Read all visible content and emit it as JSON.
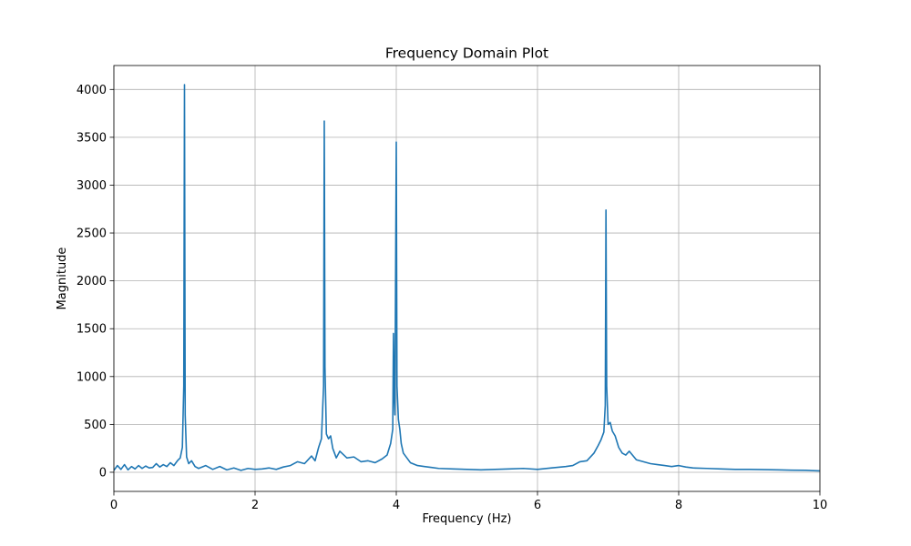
{
  "chart_data": {
    "type": "line",
    "title": "Frequency Domain Plot",
    "xlabel": "Frequency (Hz)",
    "ylabel": "Magnitude",
    "xlim": [
      0,
      10
    ],
    "ylim": [
      -200,
      4250
    ],
    "xticks": [
      0,
      2,
      4,
      6,
      8,
      10
    ],
    "yticks": [
      0,
      500,
      1000,
      1500,
      2000,
      2500,
      3000,
      3500,
      4000
    ],
    "xtick_labels": [
      "0",
      "2",
      "4",
      "6",
      "8",
      "10"
    ],
    "ytick_labels": [
      "0",
      "500",
      "1000",
      "1500",
      "2000",
      "2500",
      "3000",
      "3500",
      "4000"
    ],
    "grid": true,
    "series": [
      {
        "color": "#1f77b4",
        "peaks": [
          {
            "x": 1.0,
            "y": 4050
          },
          {
            "x": 2.98,
            "y": 3670
          },
          {
            "x": 4.0,
            "y": 3450
          },
          {
            "x": 3.96,
            "y": 1450
          },
          {
            "x": 6.97,
            "y": 2740
          }
        ],
        "x": [
          0,
          0.05,
          0.1,
          0.15,
          0.2,
          0.25,
          0.3,
          0.35,
          0.4,
          0.45,
          0.5,
          0.55,
          0.6,
          0.65,
          0.7,
          0.75,
          0.8,
          0.85,
          0.9,
          0.94,
          0.97,
          0.99,
          1.0,
          1.01,
          1.03,
          1.06,
          1.1,
          1.15,
          1.2,
          1.3,
          1.4,
          1.5,
          1.6,
          1.7,
          1.8,
          1.9,
          2.0,
          2.1,
          2.2,
          2.3,
          2.4,
          2.5,
          2.6,
          2.7,
          2.8,
          2.85,
          2.9,
          2.94,
          2.97,
          2.98,
          2.99,
          3.01,
          3.04,
          3.07,
          3.1,
          3.15,
          3.2,
          3.3,
          3.4,
          3.5,
          3.6,
          3.7,
          3.8,
          3.87,
          3.92,
          3.95,
          3.96,
          3.97,
          3.98,
          4.0,
          4.01,
          4.03,
          4.05,
          4.07,
          4.1,
          4.15,
          4.2,
          4.3,
          4.4,
          4.5,
          4.6,
          4.8,
          5.0,
          5.2,
          5.4,
          5.6,
          5.8,
          6.0,
          6.2,
          6.4,
          6.5,
          6.6,
          6.7,
          6.8,
          6.86,
          6.9,
          6.94,
          6.96,
          6.97,
          6.98,
          7.0,
          7.03,
          7.06,
          7.1,
          7.15,
          7.2,
          7.25,
          7.3,
          7.4,
          7.5,
          7.6,
          7.7,
          7.8,
          7.9,
          8.0,
          8.1,
          8.2,
          8.4,
          8.6,
          8.8,
          9.0,
          9.2,
          9.4,
          9.6,
          9.8,
          10.0
        ],
        "y": [
          20,
          70,
          30,
          80,
          25,
          60,
          35,
          70,
          40,
          65,
          45,
          50,
          90,
          55,
          80,
          60,
          100,
          70,
          120,
          150,
          260,
          900,
          4050,
          600,
          160,
          90,
          120,
          60,
          40,
          70,
          30,
          60,
          25,
          45,
          20,
          40,
          30,
          35,
          45,
          30,
          55,
          70,
          110,
          90,
          170,
          120,
          260,
          350,
          900,
          3670,
          1100,
          400,
          350,
          380,
          250,
          150,
          220,
          150,
          160,
          110,
          120,
          100,
          140,
          180,
          300,
          450,
          1450,
          800,
          600,
          3450,
          900,
          550,
          450,
          300,
          200,
          150,
          100,
          70,
          60,
          50,
          40,
          35,
          30,
          25,
          30,
          35,
          40,
          30,
          45,
          60,
          70,
          110,
          120,
          200,
          280,
          340,
          420,
          700,
          2740,
          900,
          500,
          520,
          430,
          380,
          260,
          200,
          180,
          220,
          130,
          110,
          90,
          80,
          70,
          60,
          70,
          55,
          45,
          40,
          35,
          30,
          30,
          28,
          25,
          22,
          20,
          15
        ]
      }
    ]
  }
}
